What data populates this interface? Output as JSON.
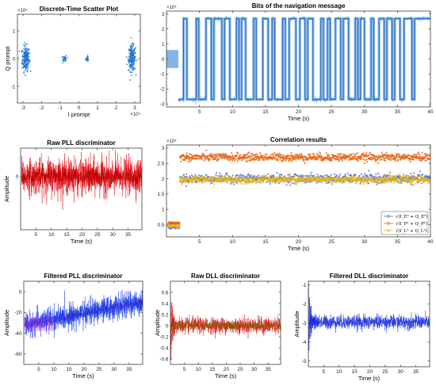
{
  "chart_data": [
    {
      "id": "scatter",
      "type": "scatter",
      "title": "Discrete-Time Scatter Plot",
      "xlabel": "I prompt",
      "ylabel": "Q prompt",
      "x_exponent": "×10⁴",
      "y_exponent": "×10⁴",
      "xlim": [
        -3.3,
        3.3
      ],
      "ylim": [
        -1.6,
        1.6
      ],
      "xticks": [
        "-3",
        "-2",
        "-1",
        "0",
        "1",
        "2",
        "3"
      ],
      "xtick_values": [
        -3,
        -2,
        -1,
        0,
        1,
        2,
        3
      ],
      "yticks": [
        "-1",
        "0",
        "1"
      ],
      "ytick_values": [
        -1,
        0,
        1
      ],
      "clusters": [
        {
          "cx": -2.85,
          "cy": 0.0,
          "sx": 0.18,
          "sy": 0.38,
          "n": 220
        },
        {
          "cx": 2.85,
          "cy": 0.0,
          "sx": 0.18,
          "sy": 0.38,
          "n": 220
        },
        {
          "cx": -0.75,
          "cy": 0.0,
          "sx": 0.1,
          "sy": 0.1,
          "n": 30
        },
        {
          "cx": 0.45,
          "cy": 0.0,
          "sx": 0.07,
          "sy": 0.08,
          "n": 25
        }
      ],
      "color": "#1f77d4"
    },
    {
      "id": "navbits",
      "type": "line",
      "title": "Bits of the navigation message",
      "xlabel": "Time (s)",
      "ylabel": "",
      "y_exponent": "×10⁴",
      "xlim": [
        0,
        40
      ],
      "ylim": [
        -3.2,
        3.2
      ],
      "xticks": [
        "5",
        "10",
        "15",
        "20",
        "25",
        "30",
        "35",
        "40"
      ],
      "xtick_values": [
        5,
        10,
        15,
        20,
        25,
        30,
        35,
        40
      ],
      "yticks": [
        "-3",
        "-2",
        "-1",
        "0",
        "1",
        "2",
        "3"
      ],
      "ytick_values": [
        -3,
        -2,
        -1,
        0,
        1,
        2,
        3
      ],
      "acquisition_phase": {
        "t_end": 1.8,
        "level": 0.6
      },
      "bit_level": 2.7,
      "transitions": [
        1.8,
        2.6,
        3.1,
        4.5,
        4.9,
        6.0,
        6.8,
        7.2,
        8.4,
        8.8,
        9.6,
        10.6,
        11.0,
        11.4,
        12.0,
        13.2,
        13.6,
        14.6,
        15.4,
        16.0,
        16.4,
        17.6,
        18.0,
        18.6,
        19.6,
        20.2,
        21.0,
        21.4,
        22.2,
        23.4,
        23.8,
        24.4,
        24.8,
        25.6,
        26.4,
        26.8,
        27.6,
        28.6,
        29.0,
        29.4,
        30.0,
        31.0,
        31.4,
        32.2,
        33.0,
        33.4,
        34.2,
        34.6,
        35.4,
        36.0,
        37.2,
        37.6
      ],
      "first_level": -1,
      "color": "#1f77d4"
    },
    {
      "id": "rawpll",
      "type": "line",
      "title": "Raw PLL discriminator",
      "xlabel": "Time (s)",
      "ylabel": "Amplitude",
      "xlim": [
        0,
        39.5
      ],
      "ylim": [
        -1.5,
        0.8
      ],
      "xticks": [
        "5",
        "10",
        "15",
        "20",
        "25",
        "30",
        "35"
      ],
      "xtick_values": [
        5,
        10,
        15,
        20,
        25,
        30,
        35
      ],
      "yticks": [
        "0"
      ],
      "ytick_values": [
        0
      ],
      "noise_amplitude": 0.25,
      "color": "#e8000b"
    },
    {
      "id": "correlation",
      "type": "scatter",
      "title": "Correlation results",
      "xlabel": "Time (s)",
      "ylabel": "",
      "y_exponent": "×10⁴",
      "xlim": [
        0,
        40
      ],
      "ylim": [
        0.1,
        3.1
      ],
      "xticks": [
        "5",
        "10",
        "15",
        "20",
        "25",
        "30",
        "35",
        "40"
      ],
      "xtick_values": [
        5,
        10,
        15,
        20,
        25,
        30,
        35,
        40
      ],
      "yticks": [
        "0.5",
        "1",
        "1.5",
        "2",
        "2.5",
        "3"
      ],
      "ytick_values": [
        0.5,
        1,
        1.5,
        2,
        2.5,
        3
      ],
      "series": [
        {
          "name": "√(I_E² + Q_E²)",
          "level": 2.0,
          "early_level": 0.42,
          "spread": 0.16,
          "color": "#5b6fd6"
        },
        {
          "name": "√(I_P² + Q_P²)",
          "level": 2.7,
          "early_level": 0.55,
          "spread": 0.14,
          "color": "#e8600e"
        },
        {
          "name": "√(I_L² + Q_L²)",
          "level": 1.97,
          "early_level": 0.45,
          "spread": 0.12,
          "color": "#e8b80e"
        }
      ],
      "switch_time": 2.0
    },
    {
      "id": "filtpll",
      "type": "line",
      "title": "Filtered PLL discriminator",
      "xlabel": "Time (s)",
      "ylabel": "Amplitude",
      "xlim": [
        0,
        39.5
      ],
      "ylim": [
        -70,
        10
      ],
      "xticks": [
        "5",
        "10",
        "15",
        "20",
        "25",
        "30",
        "35"
      ],
      "xtick_values": [
        5,
        10,
        15,
        20,
        25,
        30,
        35
      ],
      "yticks": [
        "-60",
        "-40",
        "-20",
        "0"
      ],
      "ytick_values": [
        -60,
        -40,
        -20,
        0
      ],
      "start_value": -32,
      "end_value": -10,
      "noise_amplitude": 6,
      "color": "#1a3ee8"
    },
    {
      "id": "rawdll",
      "type": "line",
      "title": "Raw DLL discriminator",
      "xlabel": "Time (s)",
      "ylabel": "Amplitude",
      "xlim": [
        0,
        39.5
      ],
      "ylim": [
        -0.7,
        0.8
      ],
      "xticks": [
        "5",
        "10",
        "15",
        "20",
        "25",
        "30",
        "35"
      ],
      "xtick_values": [
        5,
        10,
        15,
        20,
        25,
        30,
        35
      ],
      "yticks": [
        "-0.6",
        "-0.4",
        "-0.2",
        "0",
        "0.2",
        "0.4",
        "0.6"
      ],
      "ytick_values": [
        -0.6,
        -0.4,
        -0.2,
        0,
        0.2,
        0.4,
        0.6
      ],
      "noise_amplitude": 0.07,
      "color": "#d41414"
    },
    {
      "id": "filtdll",
      "type": "line",
      "title": "Filtered DLL discriminator",
      "xlabel": "Time (s)",
      "ylabel": "Amplitude",
      "xlim": [
        0,
        39.5
      ],
      "ylim": [
        -5.3,
        -0.8
      ],
      "xticks": [
        "5",
        "10",
        "15",
        "20",
        "25",
        "30",
        "35"
      ],
      "xtick_values": [
        5,
        10,
        15,
        20,
        25,
        30,
        35
      ],
      "yticks": [
        "-5",
        "-4",
        "-3",
        "-2",
        "-1"
      ],
      "ytick_values": [
        -5,
        -4,
        -3,
        -2,
        -1
      ],
      "settle_value": -2.95,
      "noise_amplitude": 0.18,
      "color": "#1a2ee0"
    }
  ]
}
